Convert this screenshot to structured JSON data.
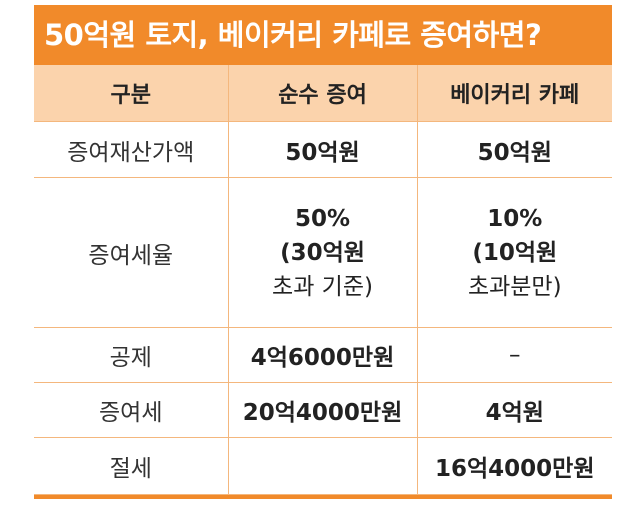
{
  "title": "50억원 토지, 베이커리 카페로 증여하면?",
  "table": {
    "headers": [
      "구분",
      "순수 증여",
      "베이커리 카페"
    ],
    "rows": [
      {
        "label": "증여재산가액",
        "pure": "50억원",
        "cafe": "50억원"
      },
      {
        "label": "증여세율",
        "pure_lines": [
          "50%",
          "(30억원",
          "초과 기준)"
        ],
        "cafe_lines": [
          "10%",
          "(10억원",
          "초과분만)"
        ]
      },
      {
        "label": "공제",
        "pure": "4억6000만원",
        "cafe": "–"
      },
      {
        "label": "증여세",
        "pure": "20억4000만원",
        "cafe": "4억원"
      },
      {
        "label": "절세",
        "pure": "",
        "cafe": "16억4000만원"
      }
    ]
  },
  "colors": {
    "accent": "#f18a2a",
    "header_bg": "#fbd3ac",
    "grid": "#f4b77d"
  }
}
